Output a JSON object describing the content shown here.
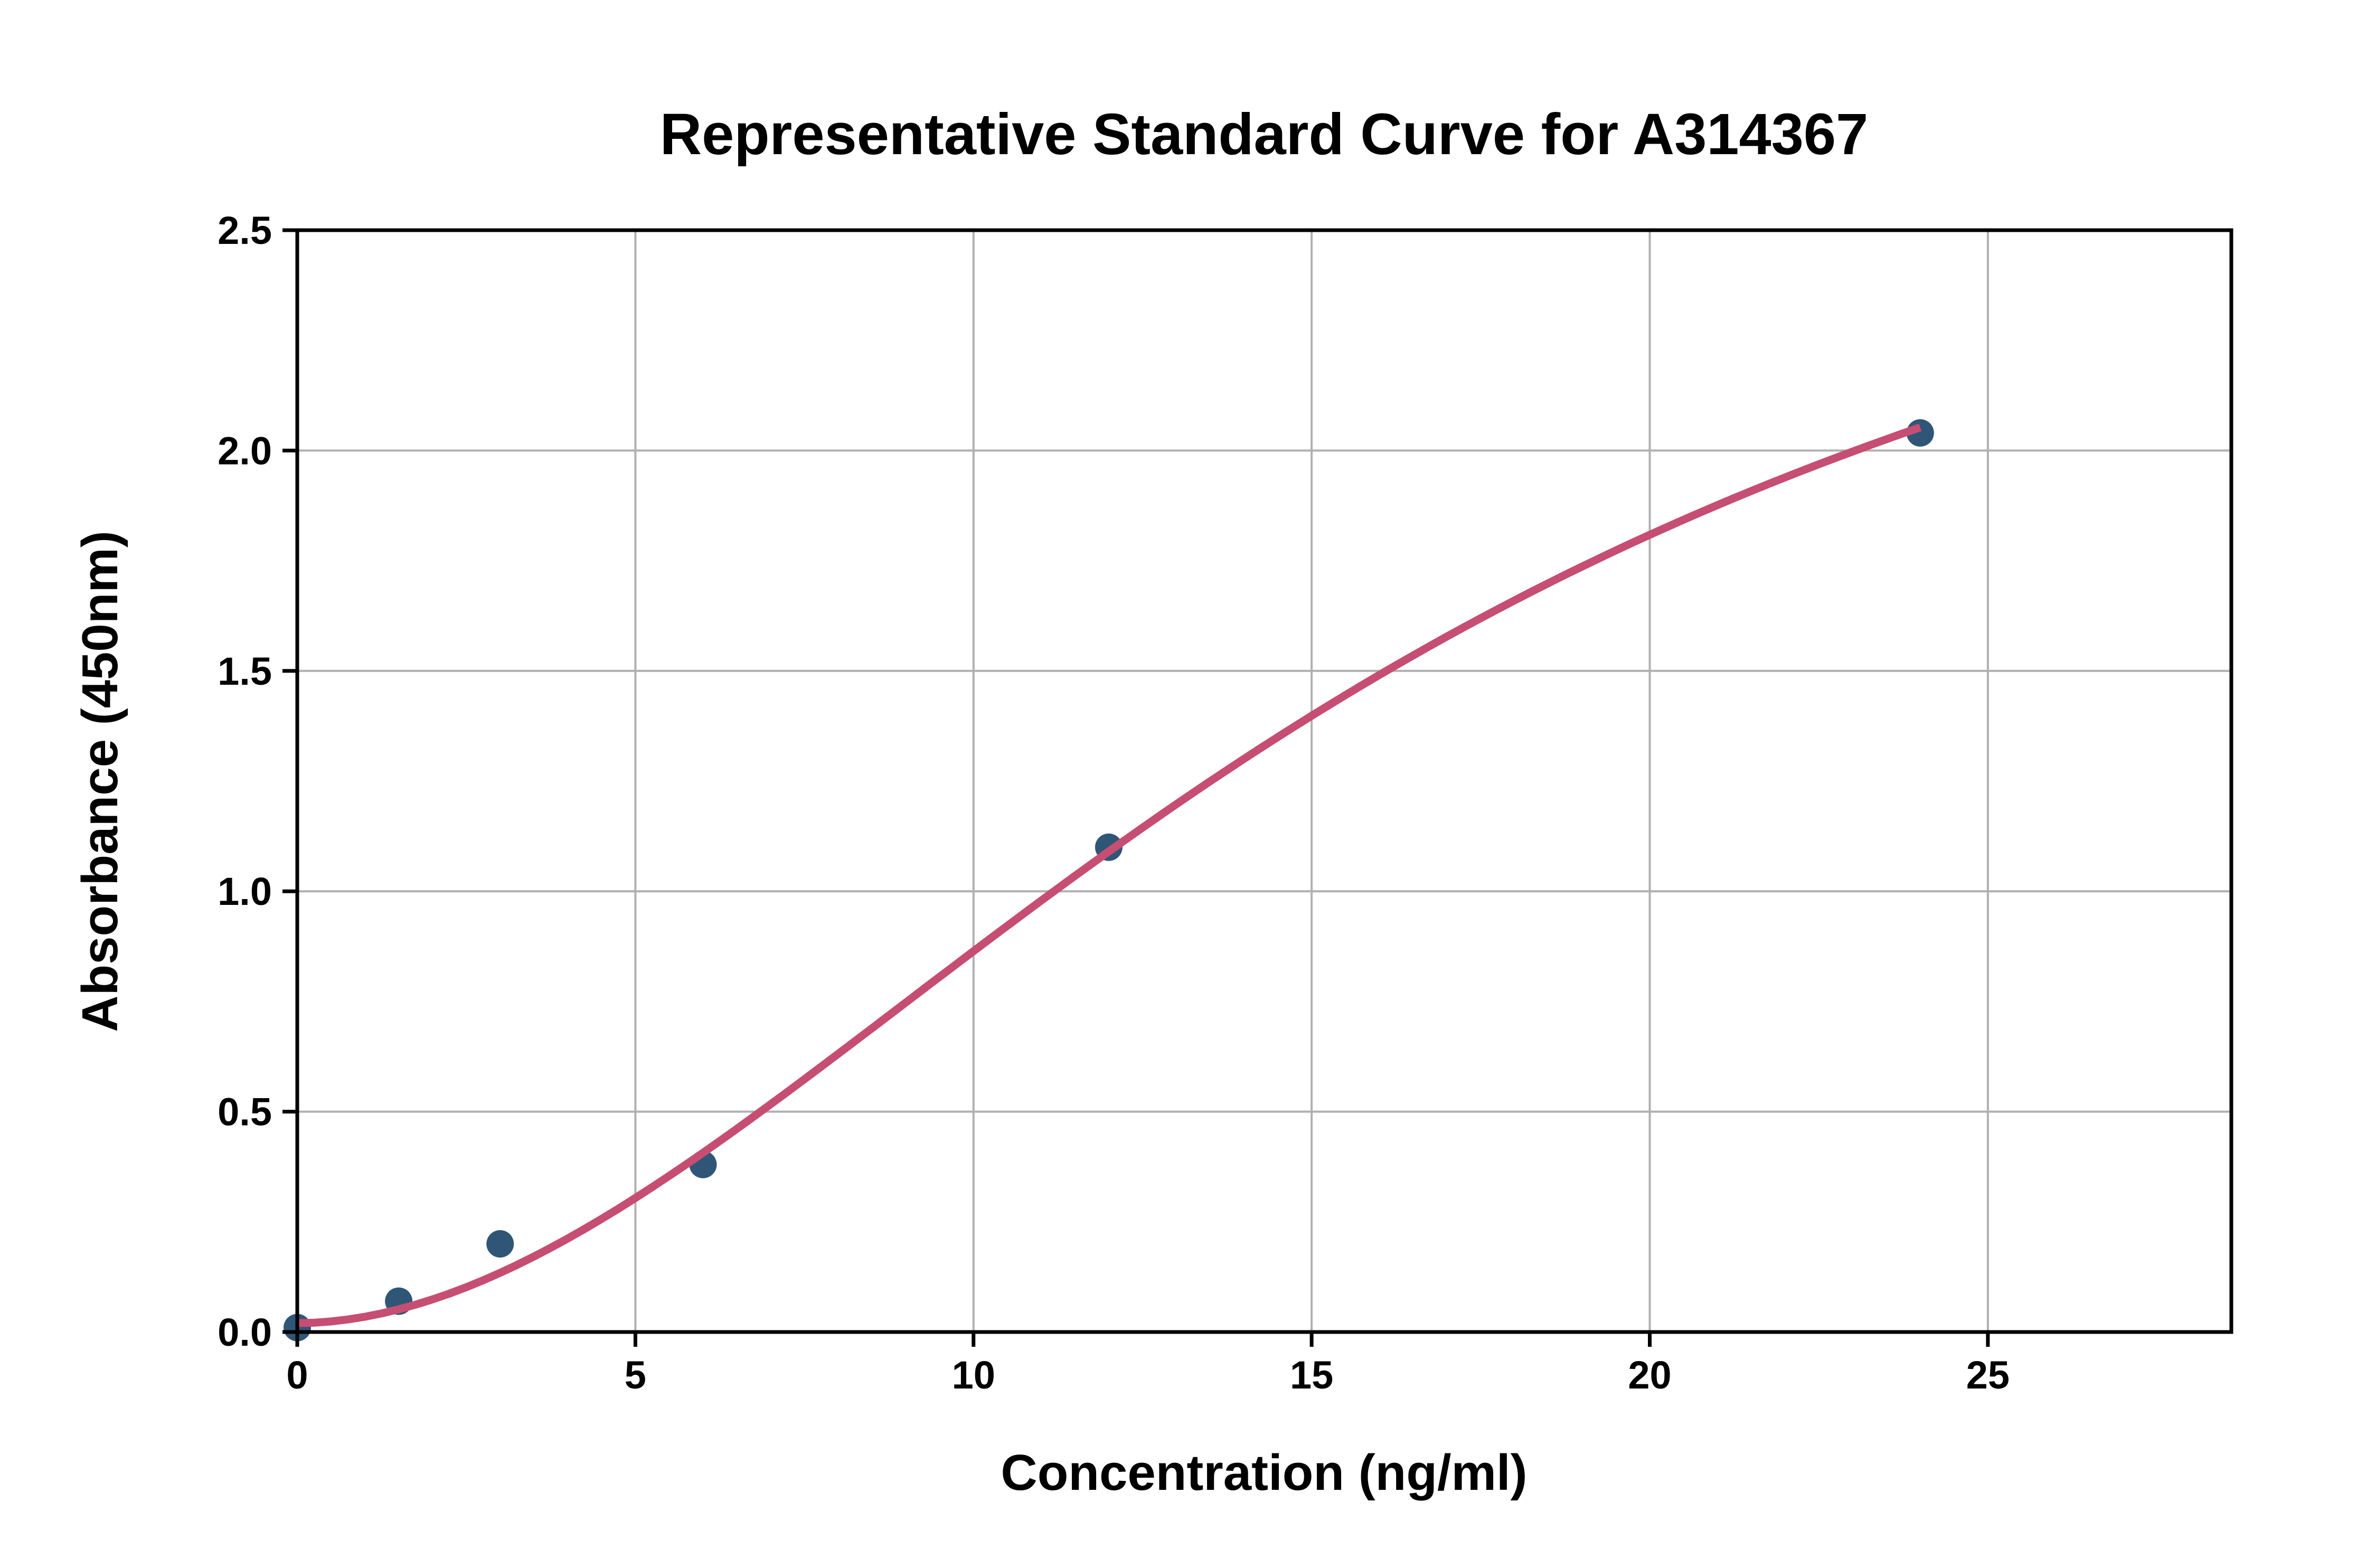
{
  "page": {
    "background": "#FFFFFF"
  },
  "chart_data": {
    "type": "scatter",
    "title": "Representative Standard Curve for A314367",
    "xlabel": "Concentration (ng/ml)",
    "ylabel": "Absorbance (450nm)",
    "xlim": [
      0,
      28.6
    ],
    "ylim": [
      0,
      2.5
    ],
    "x_ticks": [
      0,
      5,
      10,
      15,
      20,
      25
    ],
    "x_tick_labels": [
      "0",
      "5",
      "10",
      "15",
      "20",
      "25"
    ],
    "y_ticks": [
      0,
      0.5,
      1,
      1.5,
      2,
      2.5
    ],
    "y_tick_labels": [
      "0.0",
      "0.5",
      "1.0",
      "1.5",
      "2.0",
      "2.5"
    ],
    "grid": true,
    "legend": "none",
    "frame": "full-box",
    "points": {
      "name": "standard-points",
      "marker": "circle",
      "marker_radius_px": 26,
      "color": "#305677",
      "x": [
        0,
        1.5,
        3,
        6,
        12,
        24
      ],
      "y": [
        0.01,
        0.07,
        0.2,
        0.38,
        1.1,
        2.04
      ]
    },
    "fit_curve": {
      "name": "4pl-fit-curve",
      "model": "4PL",
      "params": {
        "a": 0.02,
        "b": 1.9,
        "c": 16.5,
        "d": 3.05
      },
      "x_start": 0,
      "x_end": 24,
      "color": "#C64E73",
      "stroke_width_px": 15,
      "reference_values": {
        "x": [
          0,
          1.5,
          3,
          5,
          6,
          10,
          12,
          15,
          20,
          24
        ],
        "y": [
          0.02,
          0.06,
          0.15,
          0.3,
          0.4,
          0.87,
          1.09,
          1.4,
          1.8,
          2.05
        ]
      }
    },
    "colors": {
      "grid": "#B0B0B0",
      "axis": "#000000",
      "text": "#000000",
      "background": "#FFFFFF"
    }
  }
}
